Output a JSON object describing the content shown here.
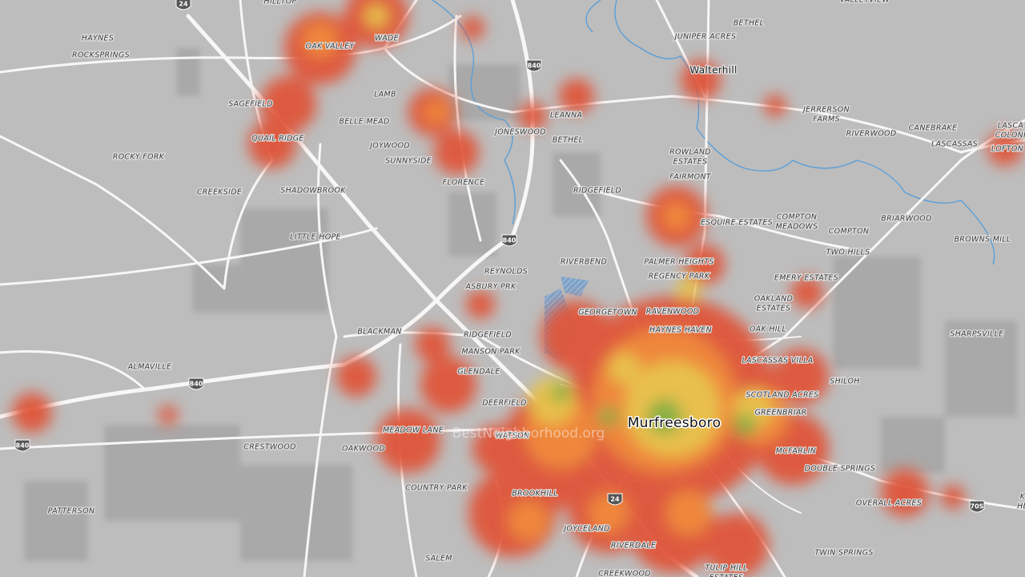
{
  "places": [
    [
      "HILLTOP"
    ],
    [
      "VALLEYVIEW"
    ],
    [
      "BETHEL"
    ],
    [
      "HAYNES"
    ],
    [
      "ROCKSPRINGS"
    ],
    [
      "OAK VALLEY"
    ],
    [
      "WADE"
    ],
    [
      "JUNIPER ACRES"
    ],
    [
      "Walterhill"
    ],
    [
      "LAMB"
    ],
    [
      "SAGEFIELD"
    ],
    [
      "LEANNA"
    ],
    [
      "JERRERSON",
      "FARMS"
    ],
    [
      "BELLE MEAD"
    ],
    [
      "JONESWOOD"
    ],
    [
      "BETHEL"
    ],
    [
      "CANEBRAKE"
    ],
    [
      "LASCASSAS"
    ],
    [
      "LASCA",
      "COLONI"
    ],
    [
      "LOFTON"
    ],
    [
      "RIVERWOOD"
    ],
    [
      "QUAIL RIDGE"
    ],
    [
      "JOYWOOD"
    ],
    [
      "ROCKY FORK"
    ],
    [
      "ROWLAND",
      "ESTATES"
    ],
    [
      "SUNNYSIDE"
    ],
    [
      "FAIRMONT"
    ],
    [
      "FLORENCE"
    ],
    [
      "CREEKSIDE"
    ],
    [
      "SHADOWBROOK"
    ],
    [
      "RIDGEFIELD"
    ],
    [
      "BRIARWOOD"
    ],
    [
      "ESQUIRE ESTATES"
    ],
    [
      "COMPTON",
      "MEADOWS"
    ],
    [
      "COMPTON"
    ],
    [
      "LITTLE HOPE"
    ],
    [
      "BROWNS MILL"
    ],
    [
      "TWO HILLS"
    ],
    [
      "RIVERBEND"
    ],
    [
      "PALMER HEIGHTS"
    ],
    [
      "REYNOLDS"
    ],
    [
      "REGENCY PARK"
    ],
    [
      "EMERY ESTATES"
    ],
    [
      "ASBURY PRK"
    ],
    [
      "OAKLAND",
      "ESTATES"
    ],
    [
      "GEORGETOWN"
    ],
    [
      "RAVENWOOD"
    ],
    [
      "HAYNES HAVEN"
    ],
    [
      "OAK HILL"
    ],
    [
      "BLACKMAN"
    ],
    [
      "RIDGEFIELD"
    ],
    [
      "SHARPSVILLE"
    ],
    [
      "MANSON PARK"
    ],
    [
      "LASCASSAS VILLA"
    ],
    [
      "ALMAVILLE"
    ],
    [
      "GLENDALE"
    ],
    [
      "SHILOH"
    ],
    [
      "SCOTLAND ACRES"
    ],
    [
      "DEERFIELD"
    ],
    [
      "GREENBRIAR"
    ],
    [
      "Murfreesboro"
    ],
    [
      "MEADOW LANE"
    ],
    [
      "WATSON"
    ],
    [
      "CRESTWOOD"
    ],
    [
      "OAKWOOD"
    ],
    [
      "MCFARLIN"
    ],
    [
      "DOUBLE SPRINGS"
    ],
    [
      "COUNTRY PARK"
    ],
    [
      "BROOKHILL"
    ],
    [
      "OVERALL ACRES"
    ],
    [
      "K",
      "HE"
    ],
    [
      "PATTERSON"
    ],
    [
      "JOYCELAND"
    ],
    [
      "RIVERDALE"
    ],
    [
      "TWIN SPRINGS"
    ],
    [
      "SALEM"
    ],
    [
      "TULIP HILL",
      "ESTATES"
    ],
    [
      "CREEKWOOD"
    ]
  ],
  "shields": [
    "24",
    "840",
    "840",
    "840",
    "840",
    "24",
    "70S"
  ],
  "watermark": "BestNeighborhood.org"
}
